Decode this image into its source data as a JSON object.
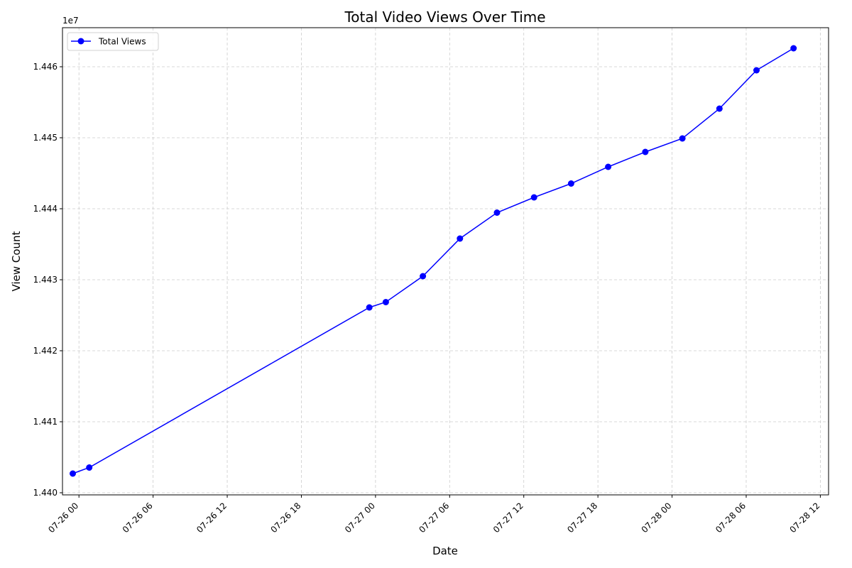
{
  "chart_data": {
    "type": "line",
    "title": "Total Video Views Over Time",
    "xlabel": "Date",
    "ylabel": "View Count",
    "y_offset_label": "1e7",
    "grid": true,
    "legend_position": "top-left",
    "x_ticks": [
      "07-26 00",
      "07-26 06",
      "07-26 12",
      "07-26 18",
      "07-27 00",
      "07-27 06",
      "07-27 12",
      "07-27 18",
      "07-28 00",
      "07-28 06",
      "07-28 12"
    ],
    "y_ticks": [
      "1.440",
      "1.441",
      "1.442",
      "1.443",
      "1.444",
      "1.445",
      "1.446"
    ],
    "xlim": [
      "2024-07-25T22:40",
      "2024-07-28T12:40"
    ],
    "ylim": [
      14399700,
      14465500
    ],
    "series": [
      {
        "name": "Total Views",
        "color": "#0000ff",
        "marker": "circle",
        "points": [
          {
            "x": "2024-07-25T23:30",
            "y": 14402700
          },
          {
            "x": "2024-07-26T00:50",
            "y": 14403550
          },
          {
            "x": "2024-07-26T23:30",
            "y": 14426100
          },
          {
            "x": "2024-07-27T00:50",
            "y": 14426850
          },
          {
            "x": "2024-07-27T03:50",
            "y": 14430500
          },
          {
            "x": "2024-07-27T06:50",
            "y": 14435800
          },
          {
            "x": "2024-07-27T09:50",
            "y": 14439450
          },
          {
            "x": "2024-07-27T12:50",
            "y": 14441600
          },
          {
            "x": "2024-07-27T15:50",
            "y": 14443550
          },
          {
            "x": "2024-07-27T18:50",
            "y": 14445900
          },
          {
            "x": "2024-07-27T21:50",
            "y": 14448000
          },
          {
            "x": "2024-07-28T00:50",
            "y": 14449900
          },
          {
            "x": "2024-07-28T03:50",
            "y": 14454100
          },
          {
            "x": "2024-07-28T06:50",
            "y": 14459500
          },
          {
            "x": "2024-07-28T09:50",
            "y": 14462600
          }
        ]
      }
    ]
  }
}
